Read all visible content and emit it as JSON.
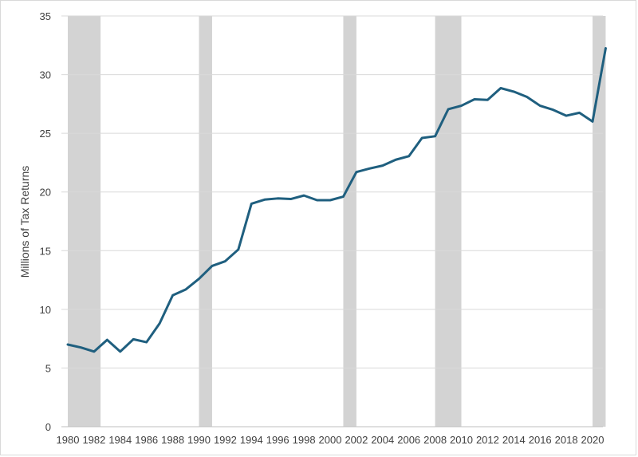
{
  "chart_data": {
    "type": "line",
    "title": "",
    "xlabel": "",
    "ylabel": "Millions of Tax Returns",
    "xlim": [
      1980,
      2021
    ],
    "ylim": [
      0,
      35
    ],
    "y_ticks": [
      "0",
      "5",
      "10",
      "15",
      "20",
      "25",
      "30",
      "35"
    ],
    "x_ticks": [
      "1980",
      "1982",
      "1984",
      "1986",
      "1988",
      "1990",
      "1992",
      "1994",
      "1996",
      "1998",
      "2000",
      "2002",
      "2004",
      "2006",
      "2008",
      "2010",
      "2012",
      "2014",
      "2016",
      "2018",
      "2020"
    ],
    "grid": "horizontal",
    "line_color": "#1f5f7f",
    "shading_color": "#d3d3d3",
    "recession_shading": [
      {
        "start": 1980,
        "end": 1982.5
      },
      {
        "start": 1990,
        "end": 1991
      },
      {
        "start": 2001,
        "end": 2002
      },
      {
        "start": 2008,
        "end": 2010
      },
      {
        "start": 2020,
        "end": 2021
      }
    ],
    "series": [
      {
        "x": [
          1980,
          1981,
          1982,
          1983,
          1984,
          1985,
          1986,
          1987,
          1988,
          1989,
          1990,
          1991,
          1992,
          1993,
          1994,
          1995,
          1996,
          1997,
          1998,
          1999,
          2000,
          2001,
          2002,
          2003,
          2004,
          2005,
          2006,
          2007,
          2008,
          2009,
          2010,
          2011,
          2012,
          2013,
          2014,
          2015,
          2016,
          2017,
          2018,
          2019,
          2020,
          2021
        ],
        "values": [
          7.0,
          6.75,
          6.4,
          7.4,
          6.4,
          7.45,
          7.2,
          8.8,
          11.2,
          11.7,
          12.6,
          13.7,
          14.1,
          15.1,
          19.0,
          19.35,
          19.45,
          19.4,
          19.7,
          19.3,
          19.3,
          19.6,
          21.7,
          22.0,
          22.25,
          22.75,
          23.05,
          24.6,
          24.75,
          27.05,
          27.35,
          27.9,
          27.85,
          28.85,
          28.55,
          28.1,
          27.35,
          27.0,
          26.5,
          26.75,
          26.0,
          32.25
        ]
      }
    ]
  }
}
